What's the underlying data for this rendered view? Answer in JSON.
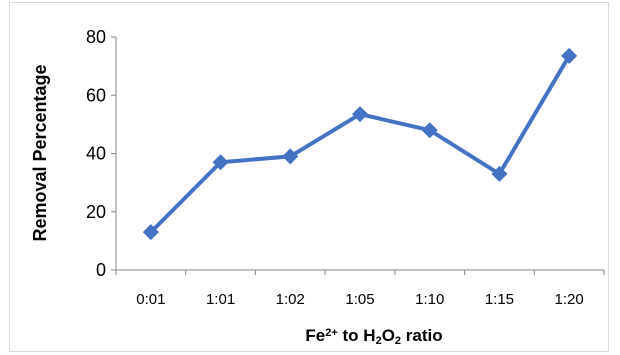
{
  "chart_data": {
    "type": "line",
    "categories": [
      "0:01",
      "1:01",
      "1:02",
      "1:05",
      "1:10",
      "1:15",
      "1:20"
    ],
    "series": [
      {
        "values": [
          13,
          37,
          39,
          53.5,
          48,
          33,
          73.5
        ]
      }
    ],
    "title": "",
    "xlabel": {
      "parts": [
        {
          "text": "Fe",
          "style": "normal"
        },
        {
          "text": "2+",
          "style": "sup"
        },
        {
          "text": " to H",
          "style": "normal"
        },
        {
          "text": "2",
          "style": "sub"
        },
        {
          "text": "O",
          "style": "normal"
        },
        {
          "text": "2",
          "style": "sub"
        },
        {
          "text": " ratio",
          "style": "normal"
        }
      ]
    },
    "ylabel": "Removal Percentage",
    "ylim": [
      0,
      80
    ],
    "yticks": [
      "0",
      "20",
      "40",
      "60",
      "80"
    ],
    "grid": false,
    "legend": "none",
    "colors": {
      "line": "#4472c4",
      "marker": "#4472c4",
      "axis": "#868686"
    }
  }
}
